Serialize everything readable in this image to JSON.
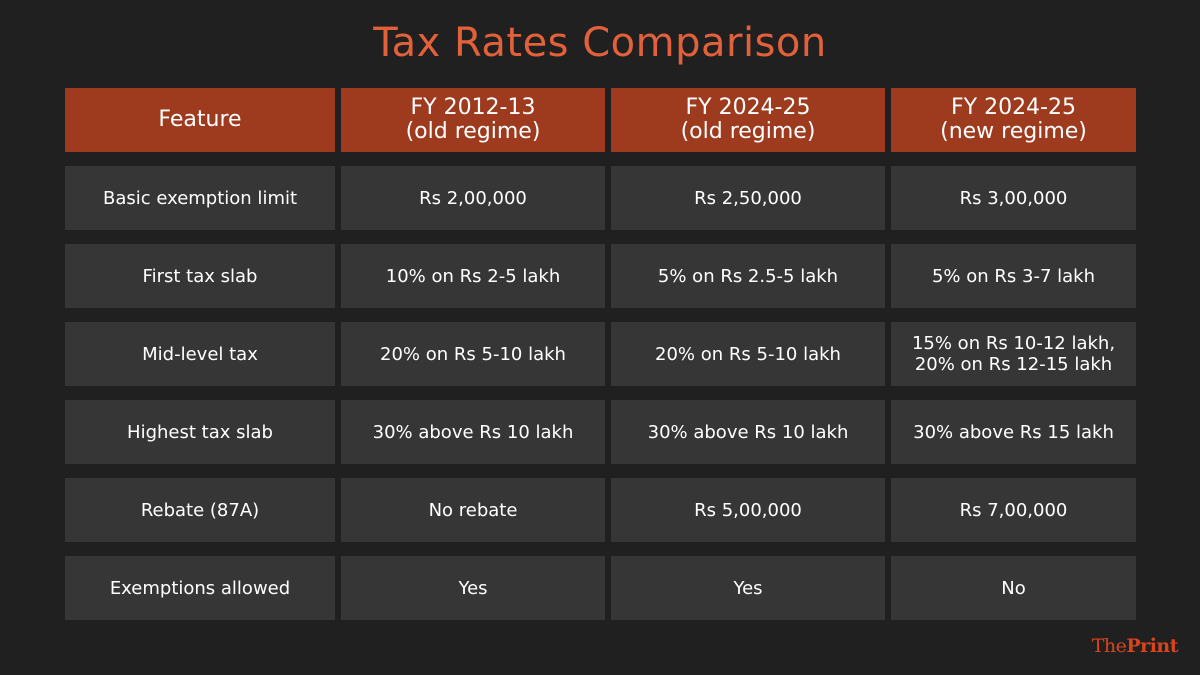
{
  "title": "Tax Rates Comparison",
  "header": [
    "Feature",
    "FY 2012-13\n(old regime)",
    "FY 2024-25\n(old regime)",
    "FY 2024-25\n(new regime)"
  ],
  "rows": [
    [
      "Basic exemption limit",
      "Rs 2,00,000",
      "Rs 2,50,000",
      "Rs 3,00,000"
    ],
    [
      "First tax slab",
      "10% on Rs 2-5 lakh",
      "5% on Rs 2.5-5 lakh",
      "5% on Rs 3-7 lakh"
    ],
    [
      "Mid-level tax",
      "20% on Rs 5-10 lakh",
      "20% on Rs 5-10 lakh",
      "15% on Rs 10-12 lakh,\n20% on Rs 12-15 lakh"
    ],
    [
      "Highest tax slab",
      "30% above Rs 10 lakh",
      "30% above Rs 10 lakh",
      "30% above Rs 15 lakh"
    ],
    [
      "Rebate (87A)",
      "No rebate",
      "Rs 5,00,000",
      "Rs 7,00,000"
    ],
    [
      "Exemptions allowed",
      "Yes",
      "Yes",
      "No"
    ]
  ],
  "logo": {
    "part1": "The",
    "part2": "Print"
  },
  "colors": {
    "background": "#202020",
    "header": "#9e3a1e",
    "cell": "#363636",
    "title": "#e2603a",
    "logo": "#d9441e"
  }
}
